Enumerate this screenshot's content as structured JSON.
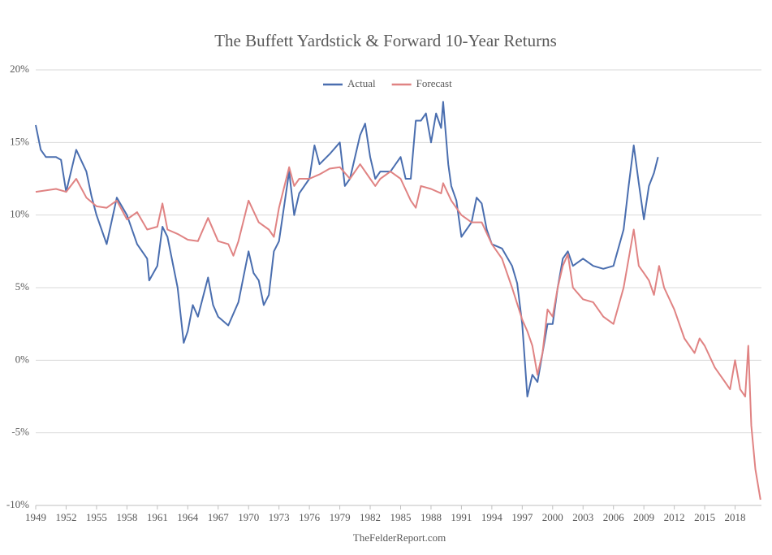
{
  "chart_data": {
    "type": "line",
    "title": "The Buffett Yardstick & Forward 10-Year Returns",
    "source": "TheFelderReport.com",
    "xlim": [
      1949,
      2020.6
    ],
    "xticks": [
      1949,
      1952,
      1955,
      1958,
      1961,
      1964,
      1967,
      1970,
      1973,
      1976,
      1979,
      1982,
      1985,
      1988,
      1991,
      1994,
      1997,
      2000,
      2003,
      2006,
      2009,
      2012,
      2015,
      2018
    ],
    "ylim": [
      -10,
      20
    ],
    "yticks": [
      {
        "value": -10,
        "label": "-10%"
      },
      {
        "value": -5,
        "label": "-5%"
      },
      {
        "value": 0,
        "label": "0%"
      },
      {
        "value": 5,
        "label": "5%"
      },
      {
        "value": 10,
        "label": "10%"
      },
      {
        "value": 15,
        "label": "15%"
      },
      {
        "value": 20,
        "label": "20%"
      }
    ],
    "grid": true,
    "legend": "top",
    "series": [
      {
        "name": "Actual",
        "color": "#4a6eaf",
        "x": [
          1949,
          1949.5,
          1950,
          1951,
          1951.5,
          1952,
          1953,
          1954,
          1954.5,
          1955,
          1956,
          1957,
          1958,
          1959,
          1960,
          1960.2,
          1961,
          1961.5,
          1962,
          1963,
          1963.6,
          1964,
          1964.5,
          1965,
          1966,
          1966.5,
          1967,
          1968,
          1969,
          1970,
          1970.5,
          1971,
          1971.5,
          1972,
          1972.5,
          1973,
          1974,
          1974.5,
          1975,
          1976,
          1976.5,
          1977,
          1978,
          1979,
          1979.5,
          1980,
          1981,
          1981.5,
          1982,
          1982.5,
          1983,
          1984,
          1985,
          1985.5,
          1986,
          1986.5,
          1987,
          1987.5,
          1988,
          1988.5,
          1989,
          1989.2,
          1989.7,
          1990,
          1990.5,
          1991,
          1992,
          1992.5,
          1993,
          1993.5,
          1994,
          1995,
          1996,
          1996.5,
          1997,
          1997.5,
          1998,
          1998.5,
          1999,
          1999.5,
          2000,
          2000.5,
          2001,
          2001.5,
          2002,
          2003,
          2004,
          2005,
          2006,
          2007,
          2007.5,
          2008,
          2008.5,
          2009,
          2009.5,
          2010,
          2010.4
        ],
        "values": [
          16.2,
          14.5,
          14.0,
          14.0,
          13.8,
          11.6,
          14.5,
          13.0,
          11.3,
          10.0,
          8.0,
          11.2,
          10.0,
          8.0,
          7.0,
          5.5,
          6.5,
          9.2,
          8.5,
          5.0,
          1.2,
          2.0,
          3.8,
          3.0,
          5.7,
          3.8,
          3.0,
          2.4,
          4.0,
          7.5,
          6.0,
          5.5,
          3.8,
          4.5,
          7.5,
          8.2,
          13.0,
          10.0,
          11.5,
          12.5,
          14.8,
          13.5,
          14.2,
          15.0,
          12.0,
          12.5,
          15.5,
          16.3,
          14.0,
          12.5,
          13.0,
          13.0,
          14.0,
          12.5,
          12.5,
          16.5,
          16.5,
          17.0,
          15.0,
          17.0,
          16.0,
          17.8,
          13.5,
          12.0,
          11.0,
          8.5,
          9.5,
          11.2,
          10.8,
          9.0,
          8.0,
          7.7,
          6.5,
          5.3,
          2.5,
          -2.5,
          -1.0,
          -1.5,
          0.5,
          2.5,
          2.5,
          5.0,
          7.0,
          7.5,
          6.5,
          7.0,
          6.5,
          6.3,
          6.5,
          9.0,
          12.0,
          14.8,
          12.2,
          9.7,
          12.0,
          12.9,
          14.0
        ]
      },
      {
        "name": "Forecast",
        "color": "#e08383",
        "x": [
          1949,
          1951,
          1952,
          1953,
          1954,
          1955,
          1956,
          1957,
          1958,
          1959,
          1960,
          1961,
          1961.5,
          1962,
          1963,
          1964,
          1965,
          1966,
          1967,
          1968,
          1968.5,
          1969,
          1970,
          1971,
          1972,
          1972.5,
          1973,
          1974,
          1974.5,
          1975,
          1976,
          1977,
          1978,
          1979,
          1980,
          1981,
          1982,
          1982.5,
          1983,
          1984,
          1985,
          1986,
          1986.5,
          1987,
          1988,
          1989,
          1989.2,
          1990,
          1991,
          1992,
          1993,
          1994,
          1995,
          1996,
          1997,
          1997.5,
          1998,
          1998.5,
          1999,
          1999.5,
          2000,
          2000.5,
          2001,
          2001.5,
          2002,
          2003,
          2004,
          2005,
          2006,
          2007,
          2008,
          2008.5,
          2009,
          2009.5,
          2010,
          2010.5,
          2011,
          2012,
          2013,
          2014,
          2014.5,
          2015,
          2016,
          2017,
          2017.5,
          2018,
          2018.5,
          2019,
          2019.3,
          2019.6,
          2020,
          2020.5
        ],
        "values": [
          11.6,
          11.8,
          11.6,
          12.5,
          11.2,
          10.6,
          10.5,
          11.0,
          9.7,
          10.2,
          9.0,
          9.2,
          10.8,
          9.0,
          8.7,
          8.3,
          8.2,
          9.8,
          8.2,
          8.0,
          7.2,
          8.2,
          11.0,
          9.5,
          9.0,
          8.5,
          10.5,
          13.3,
          12.0,
          12.5,
          12.5,
          12.8,
          13.2,
          13.3,
          12.5,
          13.5,
          12.5,
          12.0,
          12.5,
          13.0,
          12.5,
          11.0,
          10.5,
          12.0,
          11.8,
          11.5,
          12.2,
          11.0,
          10.0,
          9.5,
          9.5,
          8.0,
          7.0,
          5.0,
          2.8,
          2.0,
          1.0,
          -1.0,
          0.5,
          3.5,
          3.0,
          5.0,
          6.5,
          7.3,
          5.0,
          4.2,
          4.0,
          3.0,
          2.5,
          5.0,
          9.0,
          6.5,
          6.0,
          5.5,
          4.5,
          6.5,
          5.0,
          3.5,
          1.5,
          0.5,
          1.5,
          1.0,
          -0.5,
          -1.5,
          -2.0,
          0.0,
          -2.0,
          -2.5,
          1.0,
          -4.5,
          -7.5,
          -9.6
        ]
      }
    ]
  }
}
